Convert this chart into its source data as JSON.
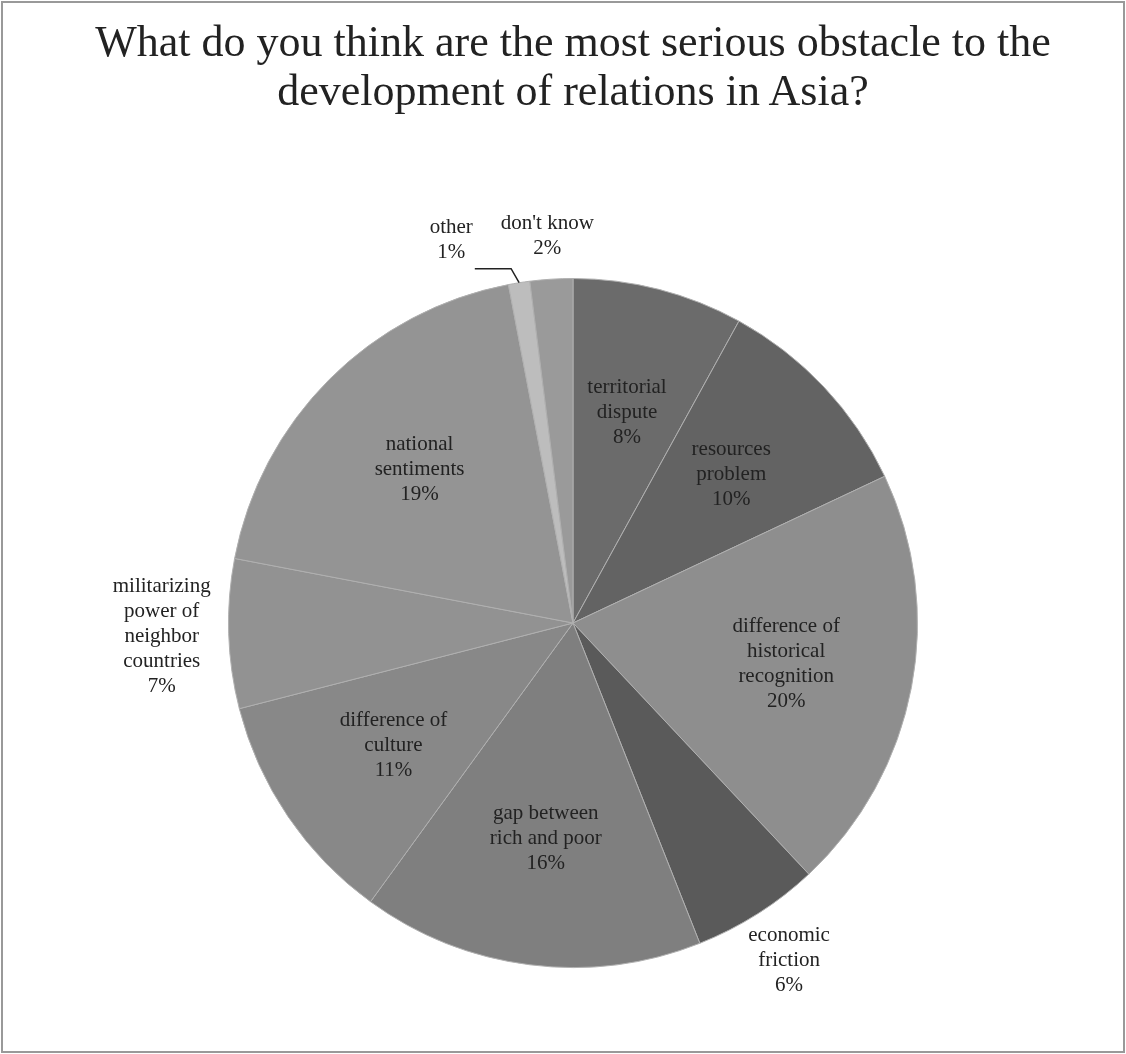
{
  "chart_data": {
    "type": "pie",
    "title": "What do you think are the most serious obstacle to the development of relations in Asia?",
    "categories": [
      "territorial dispute",
      "resources problem",
      "difference of historical recognition",
      "economic friction",
      "gap between rich and poor",
      "difference of culture",
      "militarizing power of neighbor countries",
      "national sentiments",
      "other",
      "don't know"
    ],
    "values": [
      8,
      10,
      20,
      6,
      16,
      11,
      7,
      19,
      1,
      2
    ],
    "value_labels": [
      "8%",
      "10%",
      "20%",
      "6%",
      "16%",
      "11%",
      "7%",
      "19%",
      "1%",
      "2%"
    ],
    "colors": [
      "#6b6b6b",
      "#636363",
      "#8e8e8e",
      "#5a5a5a",
      "#7f7f7f",
      "#888888",
      "#929292",
      "#949494",
      "#bdbdbd",
      "#9a9a9a"
    ],
    "legend": false
  }
}
